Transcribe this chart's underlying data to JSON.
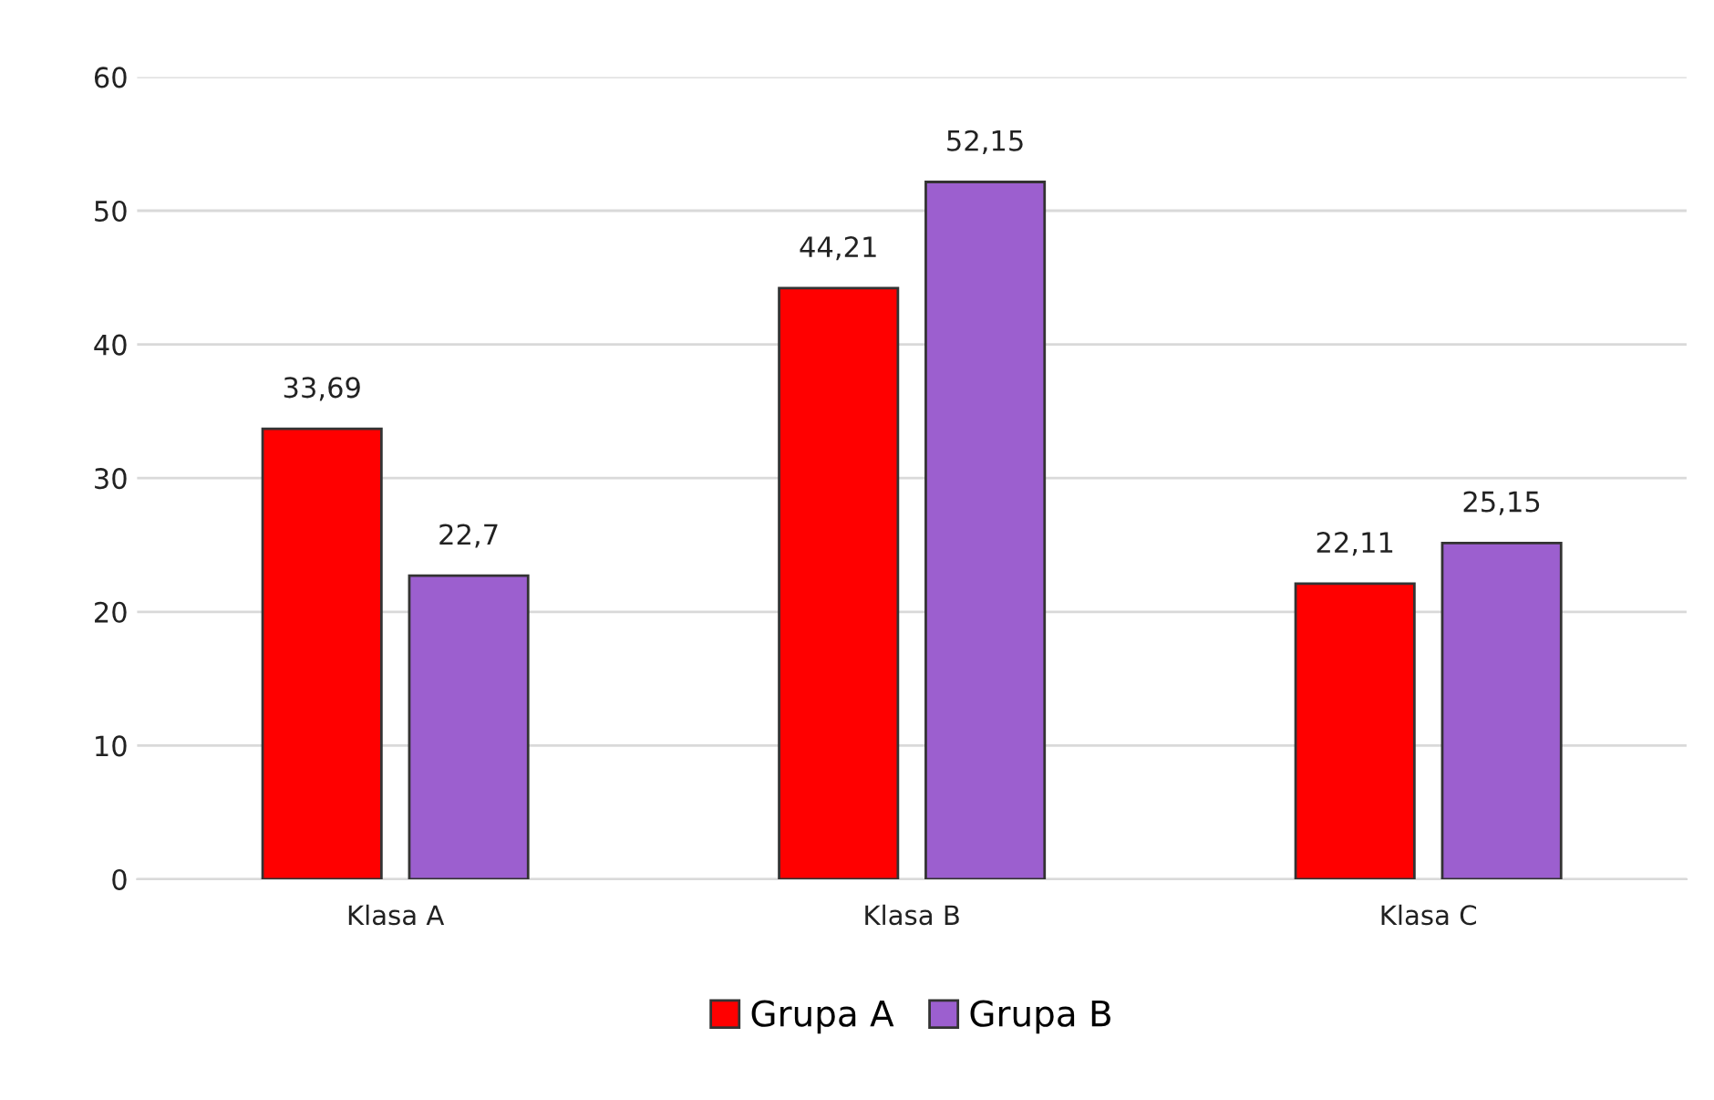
{
  "chart_data": {
    "type": "bar",
    "categories": [
      "Klasa A",
      "Klasa B",
      "Klasa C"
    ],
    "series": [
      {
        "name": "Grupa A",
        "color": "#ff0000",
        "values": [
          33.69,
          44.21,
          22.11
        ],
        "value_labels": [
          "33,69",
          "44,21",
          "22,11"
        ]
      },
      {
        "name": "Grupa B",
        "color": "#9c5fcf",
        "values": [
          22.7,
          52.15,
          25.15
        ],
        "value_labels": [
          "22,7",
          "52,15",
          "25,15"
        ]
      }
    ],
    "ylim": [
      0,
      60
    ],
    "yticks": [
      0,
      10,
      20,
      30,
      40,
      50,
      60
    ],
    "grid": "y",
    "legend": "bottom"
  }
}
